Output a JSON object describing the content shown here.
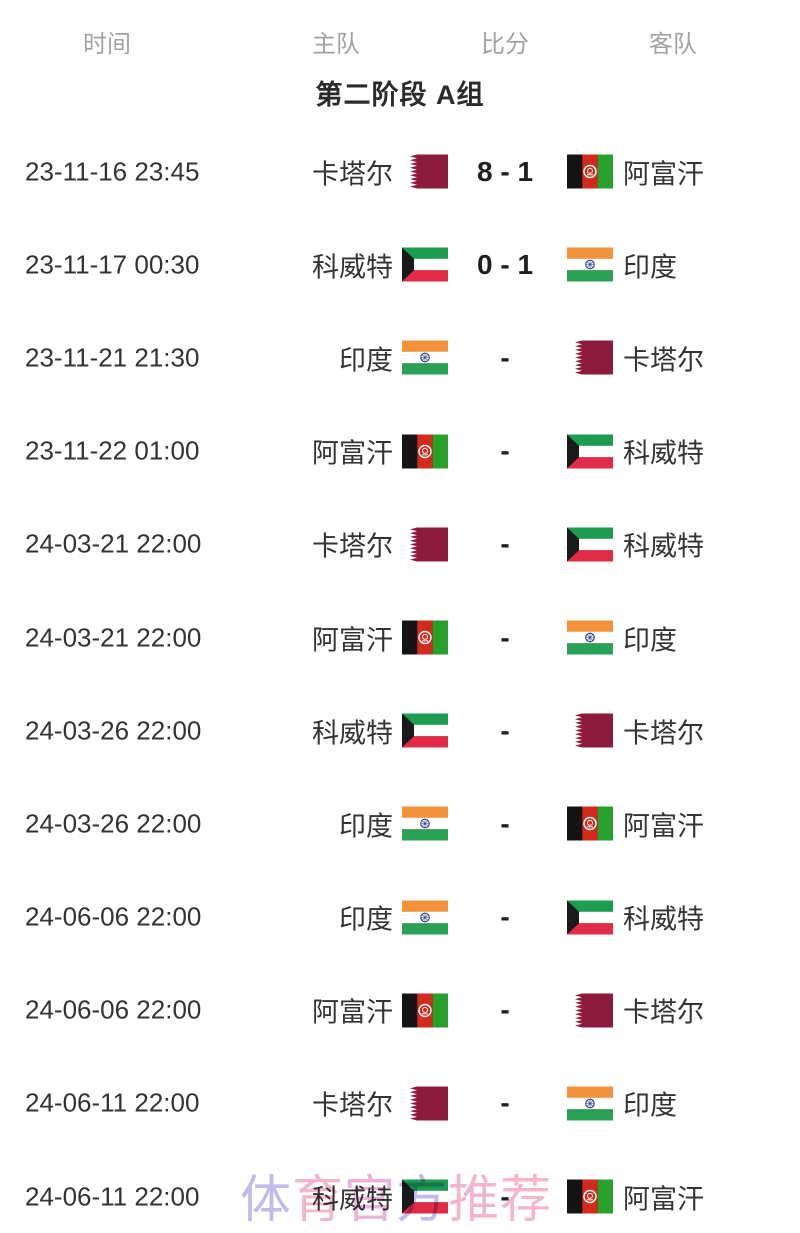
{
  "header": {
    "columns": [
      {
        "key": "time",
        "label": "时间"
      },
      {
        "key": "home",
        "label": "主队"
      },
      {
        "key": "score",
        "label": "比分"
      },
      {
        "key": "away",
        "label": "客队"
      }
    ]
  },
  "group_title": "第二阶段 A组",
  "matches": [
    {
      "time": "23-11-16 23:45",
      "home": "卡塔尔",
      "home_flag": "qatar",
      "score": "8 - 1",
      "away": "阿富汗",
      "away_flag": "afghanistan"
    },
    {
      "time": "23-11-17 00:30",
      "home": "科威特",
      "home_flag": "kuwait",
      "score": "0 - 1",
      "away": "印度",
      "away_flag": "india"
    },
    {
      "time": "23-11-21 21:30",
      "home": "印度",
      "home_flag": "india",
      "score": "-",
      "away": "卡塔尔",
      "away_flag": "qatar"
    },
    {
      "time": "23-11-22 01:00",
      "home": "阿富汗",
      "home_flag": "afghanistan",
      "score": "-",
      "away": "科威特",
      "away_flag": "kuwait"
    },
    {
      "time": "24-03-21 22:00",
      "home": "卡塔尔",
      "home_flag": "qatar",
      "score": "-",
      "away": "科威特",
      "away_flag": "kuwait"
    },
    {
      "time": "24-03-21 22:00",
      "home": "阿富汗",
      "home_flag": "afghanistan",
      "score": "-",
      "away": "印度",
      "away_flag": "india"
    },
    {
      "time": "24-03-26 22:00",
      "home": "科威特",
      "home_flag": "kuwait",
      "score": "-",
      "away": "卡塔尔",
      "away_flag": "qatar"
    },
    {
      "time": "24-03-26 22:00",
      "home": "印度",
      "home_flag": "india",
      "score": "-",
      "away": "阿富汗",
      "away_flag": "afghanistan"
    },
    {
      "time": "24-06-06 22:00",
      "home": "印度",
      "home_flag": "india",
      "score": "-",
      "away": "科威特",
      "away_flag": "kuwait"
    },
    {
      "time": "24-06-06 22:00",
      "home": "阿富汗",
      "home_flag": "afghanistan",
      "score": "-",
      "away": "卡塔尔",
      "away_flag": "qatar"
    },
    {
      "time": "24-06-11 22:00",
      "home": "卡塔尔",
      "home_flag": "qatar",
      "score": "-",
      "away": "印度",
      "away_flag": "india"
    },
    {
      "time": "24-06-11 22:00",
      "home": "科威特",
      "home_flag": "kuwait",
      "score": "-",
      "away": "阿富汗",
      "away_flag": "afghanistan"
    }
  ],
  "watermark": {
    "text": "体育官方推荐",
    "char_colors": [
      "#b7aee8",
      "#f2a8c6",
      "#e3a8d2",
      "#b7aee8",
      "#f0a8c8",
      "#f4a8c4"
    ]
  },
  "colors": {
    "page_bg": "#ffffff",
    "muted_text": "#a2a2a2",
    "title_text": "#2b2b2b",
    "text_dark": "#333333",
    "score_text": "#1f1f1f",
    "qatar_maroon": "#8d1b3d",
    "afghan_black": "#141414",
    "afghan_red": "#d32a1e",
    "afghan_green": "#27a12c",
    "kuwait_green": "#1b9c50",
    "kuwait_red": "#e22b46",
    "kuwait_black": "#1a1a1a",
    "india_saffron": "#f2923a",
    "india_green": "#2aa157",
    "india_navy": "#2b3f8c"
  }
}
